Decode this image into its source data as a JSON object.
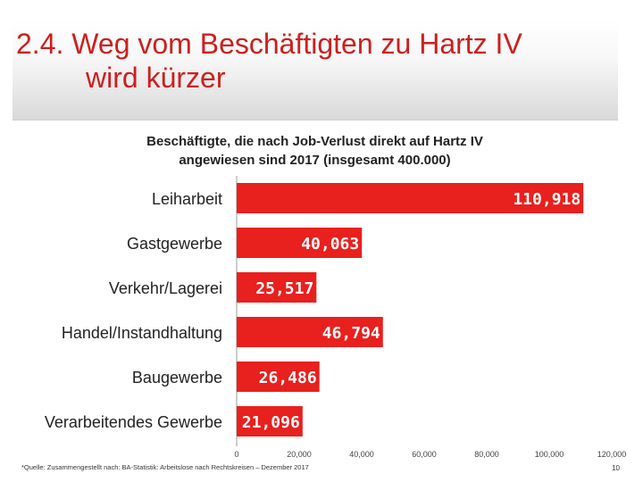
{
  "slide": {
    "title_line1": "2.4. Weg vom Beschäftigten zu Hartz IV",
    "title_line2": "wird kürzer",
    "footnote": "*Quelle: Zusammengestellt nach: BA-Statistik: Arbeitslose nach Rechtskreisen – Dezember 2017",
    "page_number": "10"
  },
  "colors": {
    "accent": "#cc1f1f",
    "bar": "#e8201e",
    "label": "#ffffff"
  },
  "chart_data": {
    "type": "bar",
    "orientation": "horizontal",
    "title_line1": "Beschäftigte, die nach Job-Verlust direkt auf Hartz IV",
    "title_line2": "angewiesen sind 2017 (insgesamt 400.000)",
    "categories": [
      "Leiharbeit",
      "Gastgewerbe",
      "Verkehr/Lagerei",
      "Handel/Instandhaltung",
      "Baugewerbe",
      "Verarbeitendes Gewerbe"
    ],
    "values": [
      110918,
      40063,
      25517,
      46794,
      26486,
      21096
    ],
    "value_labels": [
      "110,918",
      "40,063",
      "25,517",
      "46,794",
      "26,486",
      "21,096"
    ],
    "xlim": [
      0,
      120000
    ],
    "xticks": [
      0,
      20000,
      40000,
      60000,
      80000,
      100000,
      120000
    ],
    "xtick_labels": [
      "0",
      "20,000",
      "40,000",
      "60,000",
      "80,000",
      "100,000",
      "120,000"
    ],
    "legend": "none",
    "grid": false
  }
}
